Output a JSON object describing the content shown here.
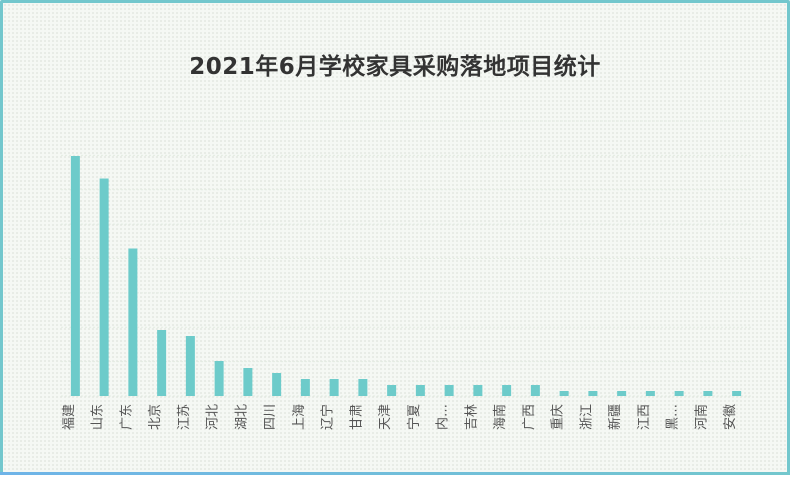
{
  "chart_data": {
    "type": "bar",
    "title": "2021年6月学校家具采购落地项目统计",
    "xlabel": "",
    "ylabel": "",
    "categories": [
      "福建",
      "山东",
      "广东",
      "北京",
      "江苏",
      "河北",
      "湖北",
      "四川",
      "上海",
      "辽宁",
      "甘肃",
      "天津",
      "宁夏",
      "内…",
      "吉林",
      "海南",
      "广西",
      "重庆",
      "浙江",
      "新疆",
      "江西",
      "黑…",
      "河南",
      "安徽"
    ],
    "values": [
      48,
      43.5,
      29.5,
      13.2,
      12,
      7,
      5.6,
      4.6,
      3.4,
      3.4,
      3.4,
      2.2,
      2.2,
      2.2,
      2.2,
      2.2,
      2.2,
      1,
      1,
      1,
      1,
      1,
      1,
      1
    ],
    "ylim": [
      0,
      55
    ],
    "grid": true,
    "bar_color": "#6dcbca",
    "grid_color": "#e4ece2",
    "border_color": "#73c7cd"
  }
}
